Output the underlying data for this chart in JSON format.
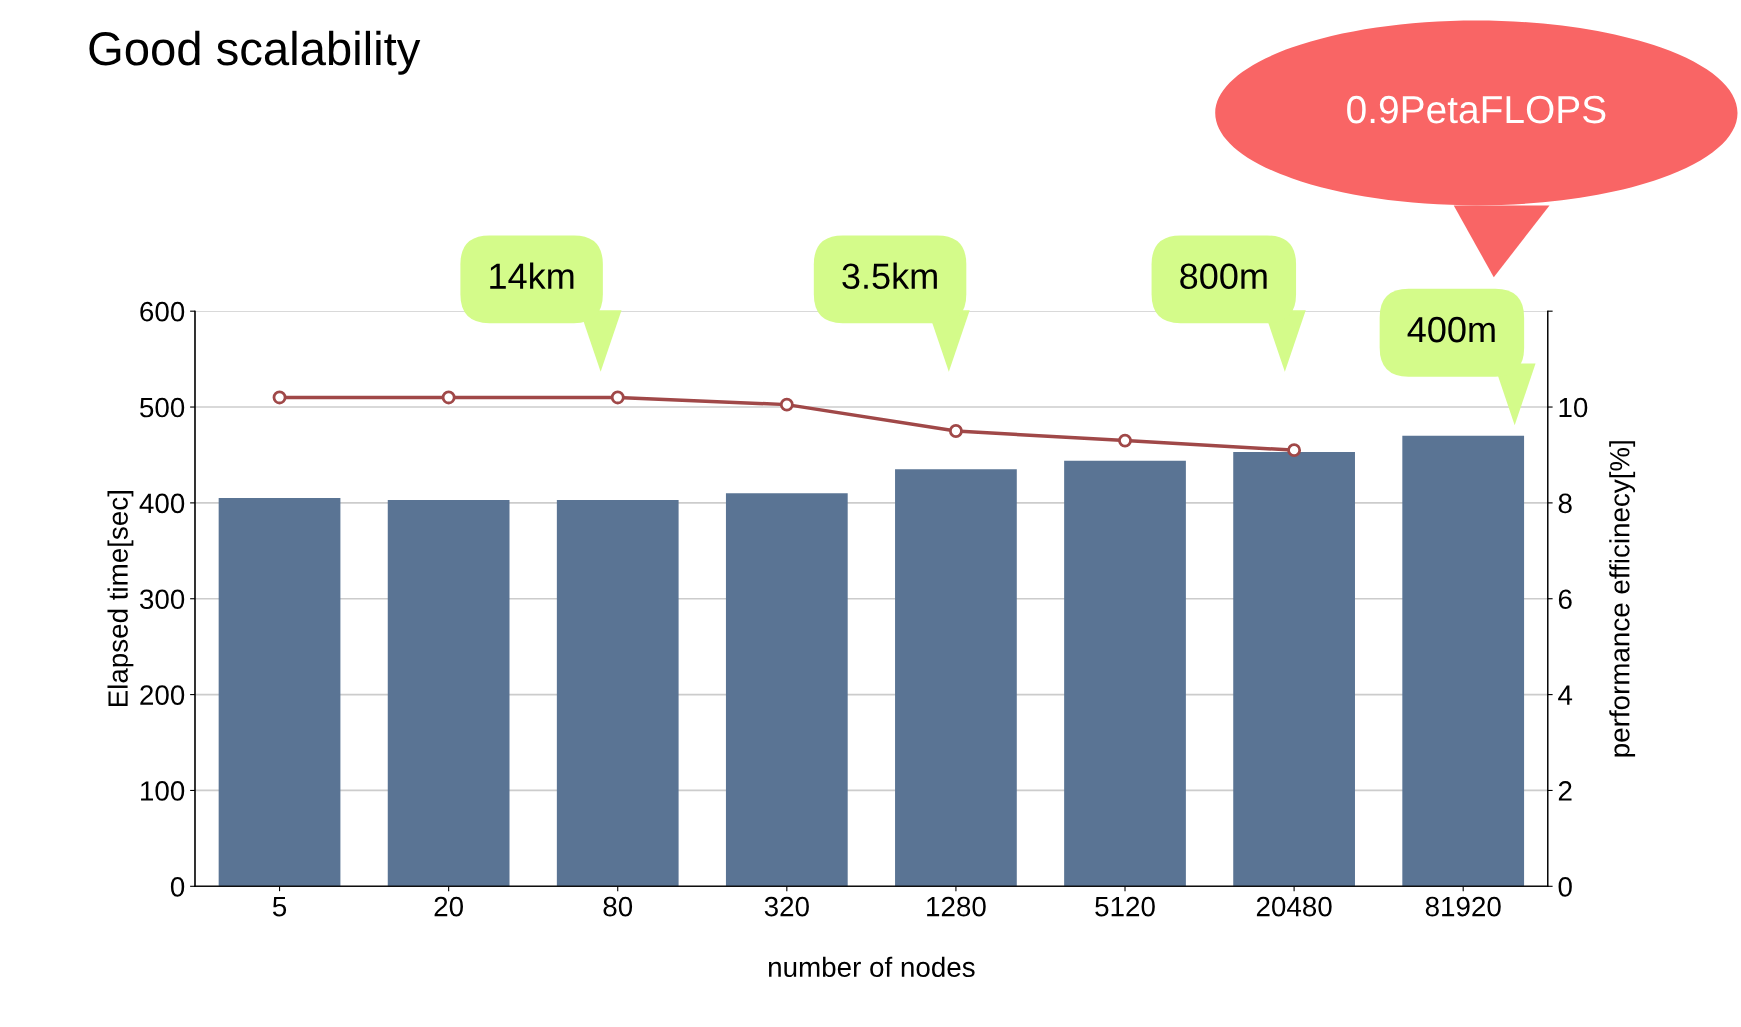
{
  "chart_data": {
    "type": "bar",
    "title": "Good scalability",
    "xlabel": "number of nodes",
    "ylabel": "Elapsed time[sec]",
    "y2label": "performance efficinecy[%]",
    "categories": [
      "5",
      "20",
      "80",
      "320",
      "1280",
      "5120",
      "20480",
      "81920"
    ],
    "series": [
      {
        "color": "#5a7494",
        "values": [
          405,
          403,
          403,
          410,
          435,
          444,
          453,
          470
        ]
      },
      {
        "type": "line",
        "axis": "y2",
        "color": "#a04848",
        "marker": "circle",
        "values": [
          10.2,
          10.2,
          10.2,
          10.05,
          9.5,
          9.3,
          9.1,
          null
        ]
      }
    ],
    "ylim": [
      0,
      600
    ],
    "yticks": [
      0,
      100,
      200,
      300,
      400,
      500,
      600
    ],
    "y2lim": [
      0,
      12
    ],
    "y2ticks": [
      0,
      2,
      4,
      6,
      8,
      10,
      {
        "value": 12,
        "label": null
      }
    ],
    "grid": "y",
    "annotations": [
      "14km",
      "3.5km",
      "800m",
      "400m",
      "0.9PetaFLOPS"
    ]
  }
}
